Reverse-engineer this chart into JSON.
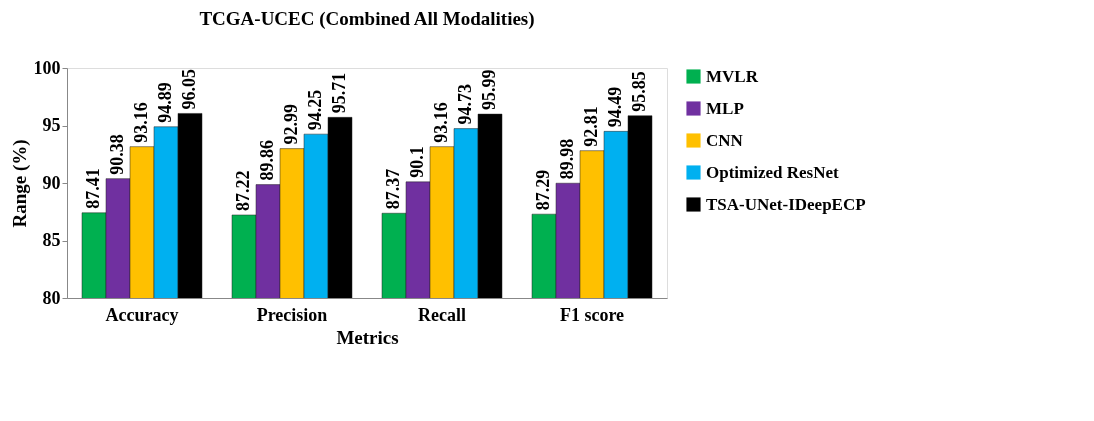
{
  "chart_data": {
    "type": "bar",
    "title": "TCGA-UCEC (Combined All Modalities)",
    "xlabel": "Metrics",
    "ylabel": "Range (%)",
    "categories": [
      "Accuracy",
      "Precision",
      "Recall",
      "F1 score"
    ],
    "series": [
      {
        "name": "MVLR",
        "color": "#00b050",
        "values": [
          87.41,
          87.22,
          87.37,
          87.29
        ]
      },
      {
        "name": "MLP",
        "color": "#7030a0",
        "values": [
          90.38,
          89.86,
          90.1,
          89.98
        ]
      },
      {
        "name": "CNN",
        "color": "#ffc000",
        "values": [
          93.16,
          92.99,
          93.16,
          92.81
        ]
      },
      {
        "name": "Optimized ResNet",
        "color": "#00b0f0",
        "values": [
          94.89,
          94.25,
          94.73,
          94.49
        ]
      },
      {
        "name": "TSA-UNet-IDeepECP",
        "color": "#000000",
        "values": [
          96.05,
          95.71,
          95.99,
          95.85
        ]
      }
    ],
    "ylim": [
      80,
      100
    ],
    "yticks": [
      80,
      85,
      90,
      95,
      100
    ],
    "grid": false,
    "legend": "right",
    "data_labels": true
  }
}
